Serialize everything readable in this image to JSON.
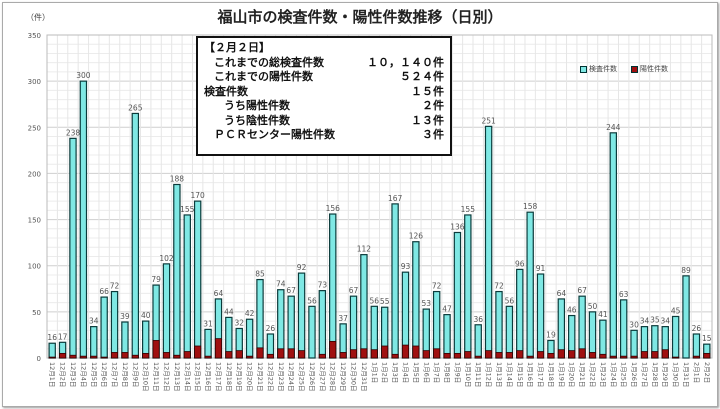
{
  "chart_data": {
    "type": "bar",
    "title": "福山市の検査件数・陽性件数推移（日別）",
    "ylabel": "（件）",
    "ylim": [
      0,
      350
    ],
    "yticks": [
      0,
      50,
      100,
      150,
      200,
      250,
      300,
      350
    ],
    "grid": true,
    "legend_position": "top-right",
    "categories": [
      "12月1日",
      "12月2日",
      "12月3日",
      "12月4日",
      "12月5日",
      "12月6日",
      "12月7日",
      "12月8日",
      "12月9日",
      "12月10日",
      "12月11日",
      "12月12日",
      "12月13日",
      "12月14日",
      "12月15日",
      "12月16日",
      "12月17日",
      "12月18日",
      "12月19日",
      "12月20日",
      "12月21日",
      "12月22日",
      "12月23日",
      "12月24日",
      "12月25日",
      "12月26日",
      "12月27日",
      "12月28日",
      "12月29日",
      "12月30日",
      "12月31日",
      "1月1日",
      "1月2日",
      "1月3日",
      "1月4日",
      "1月5日",
      "1月6日",
      "1月7日",
      "1月8日",
      "1月9日",
      "1月10日",
      "1月11日",
      "1月12日",
      "1月13日",
      "1月14日",
      "1月15日",
      "1月16日",
      "1月17日",
      "1月18日",
      "1月19日",
      "1月20日",
      "1月21日",
      "1月22日",
      "1月23日",
      "1月24日",
      "1月25日",
      "1月26日",
      "1月27日",
      "1月28日",
      "1月29日",
      "1月30日",
      "1月31日",
      "2月1日",
      "2月2日"
    ],
    "series": [
      {
        "name": "検査件数",
        "color": "#7fe8e4",
        "values": [
          16,
          17,
          238,
          300,
          34,
          66,
          72,
          39,
          265,
          40,
          79,
          102,
          188,
          155,
          170,
          31,
          64,
          44,
          32,
          42,
          85,
          26,
          74,
          67,
          92,
          56,
          73,
          156,
          37,
          67,
          112,
          56,
          55,
          167,
          93,
          126,
          53,
          72,
          47,
          136,
          155,
          36,
          251,
          72,
          56,
          96,
          158,
          91,
          19,
          64,
          46,
          67,
          50,
          41,
          244,
          63,
          30,
          34,
          35,
          34,
          45,
          89,
          26,
          15
        ]
      },
      {
        "name": "陽性件数",
        "color": "#a01010",
        "values": [
          1,
          5,
          3,
          2,
          2,
          1,
          6,
          6,
          3,
          5,
          19,
          6,
          3,
          7,
          13,
          2,
          21,
          7,
          8,
          2,
          11,
          4,
          10,
          10,
          8,
          0,
          4,
          18,
          6,
          9,
          10,
          9,
          13,
          4,
          14,
          13,
          8,
          10,
          5,
          5,
          7,
          2,
          8,
          6,
          6,
          8,
          2,
          7,
          5,
          9,
          8,
          10,
          6,
          4,
          2,
          2,
          2,
          7,
          7,
          9,
          1,
          0,
          2,
          5
        ]
      }
    ]
  },
  "infobox": {
    "date": "【２月２日】",
    "rows": [
      {
        "label": "これまでの総検査件数",
        "value": "１０，１４０件"
      },
      {
        "label": "これまでの陽性件数",
        "value": "５２４件"
      },
      {
        "label": "検査件数",
        "value": "１５件"
      },
      {
        "label": "うち陽性件数",
        "value": "２件"
      },
      {
        "label": "うち陰性件数",
        "value": "１３件"
      },
      {
        "label": "ＰＣＲセンター陽性件数",
        "value": "３件"
      }
    ]
  }
}
